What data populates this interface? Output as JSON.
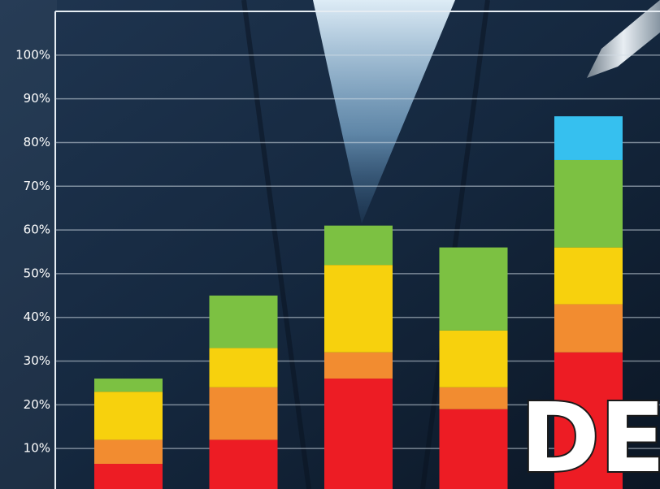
{
  "chart_data": {
    "type": "stacked_bar",
    "annotation": "DEL",
    "ylim": [
      0,
      110
    ],
    "yticks": [
      {
        "value": 10,
        "label": "10%"
      },
      {
        "value": 20,
        "label": "20%"
      },
      {
        "value": 30,
        "label": "30%"
      },
      {
        "value": 40,
        "label": "40%"
      },
      {
        "value": 50,
        "label": "50%"
      },
      {
        "value": 60,
        "label": "60%"
      },
      {
        "value": 70,
        "label": "70%"
      },
      {
        "value": 80,
        "label": "80%"
      },
      {
        "value": 90,
        "label": "90%"
      },
      {
        "value": 100,
        "label": "100%"
      }
    ],
    "grid": true,
    "series": [
      {
        "color": "#ed1c24",
        "values": [
          6.5,
          12,
          26,
          19,
          32
        ]
      },
      {
        "color": "#f28c30",
        "values": [
          5.5,
          12,
          6,
          5,
          11
        ]
      },
      {
        "color": "#f7d10d",
        "values": [
          11,
          9,
          20,
          13,
          13
        ]
      },
      {
        "color": "#7cc142",
        "values": [
          3,
          12,
          9,
          19,
          20
        ]
      },
      {
        "color": "#36c0ef",
        "values": [
          null,
          null,
          null,
          null,
          10
        ]
      }
    ]
  }
}
